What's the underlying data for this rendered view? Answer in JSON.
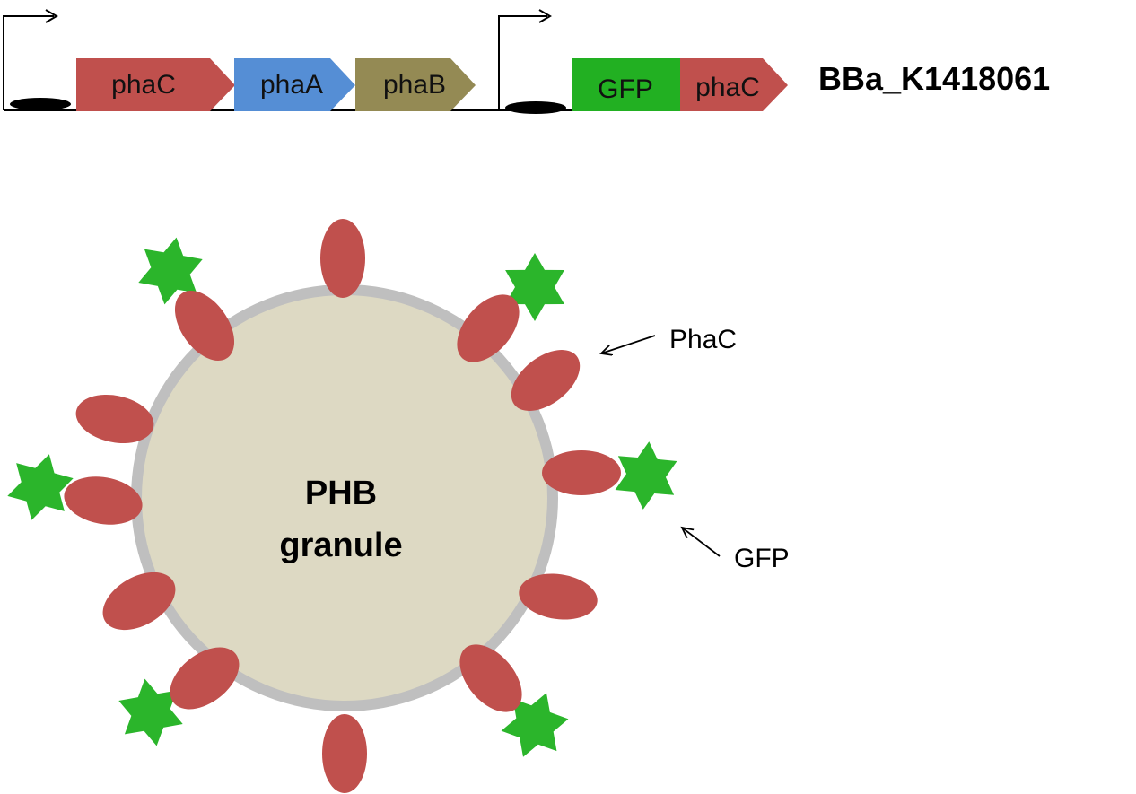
{
  "construct": {
    "part_id": "BBa_K1418061",
    "operon1": {
      "genes": [
        {
          "label": "phaC",
          "color": "#c0504d"
        },
        {
          "label": "phaA",
          "color": "#558ed5"
        },
        {
          "label": "phaB",
          "color": "#948a54"
        }
      ]
    },
    "operon2": {
      "genes": [
        {
          "label": "GFP",
          "color": "#22b022"
        },
        {
          "label": "phaC",
          "color": "#c0504d"
        }
      ]
    }
  },
  "granule": {
    "line1": "PHB",
    "line2": "granule",
    "fill_color": "#ddd9c3",
    "border_color": "#bfbfbf"
  },
  "labels": {
    "phac": "PhaC",
    "gfp": "GFP"
  },
  "colors": {
    "phac_protein": "#c0504d",
    "gfp_protein": "#2bb52b"
  }
}
